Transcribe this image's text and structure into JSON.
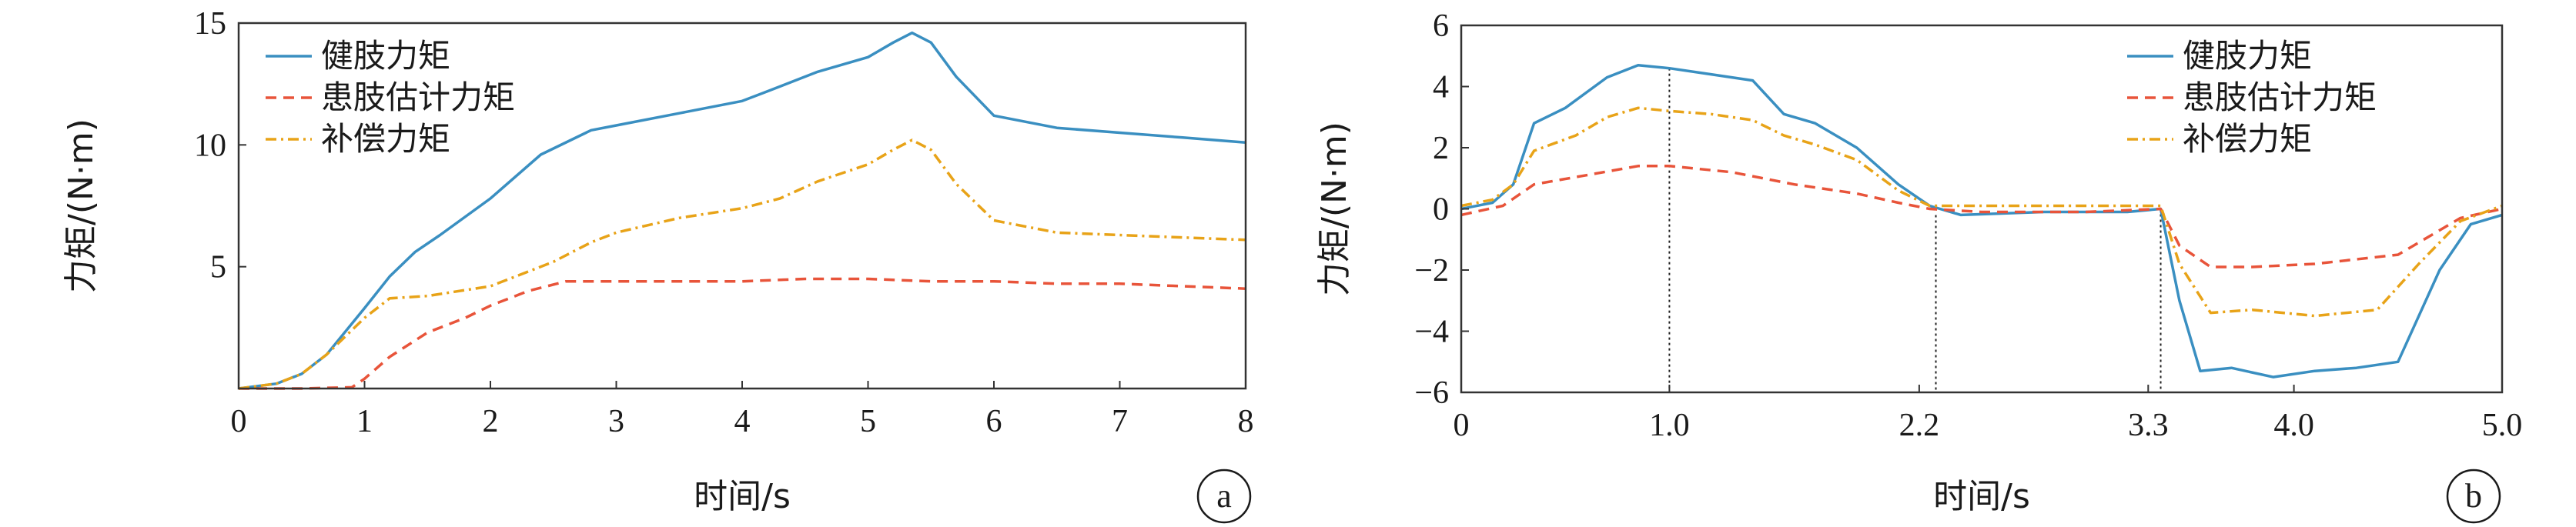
{
  "chart_data": [
    {
      "panel": "a",
      "type": "line",
      "xlabel": "时间/s",
      "ylabel": "力矩/(N·m)",
      "xlim": [
        0,
        8
      ],
      "ylim": [
        0,
        15
      ],
      "xticks": [
        0,
        1,
        2,
        3,
        4,
        5,
        6,
        7,
        8
      ],
      "xtick_labels": [
        "0",
        "1",
        "2",
        "3",
        "4",
        "5",
        "6",
        "7",
        "8"
      ],
      "yticks": [
        5,
        10,
        15
      ],
      "ytick_labels": [
        "5",
        "10",
        "15"
      ],
      "legend": "top-left",
      "series": [
        {
          "name": "健肢力矩",
          "color": "#3a8fc1",
          "dash": "solid",
          "x": [
            0,
            0.3,
            0.5,
            0.7,
            1.0,
            1.2,
            1.4,
            1.6,
            2.0,
            2.4,
            2.8,
            3.0,
            3.5,
            4.0,
            4.2,
            4.6,
            5.0,
            5.2,
            5.35,
            5.5,
            5.7,
            6.0,
            6.5,
            7.0,
            7.5,
            8.0
          ],
          "y": [
            0,
            0.2,
            0.6,
            1.4,
            3.3,
            4.6,
            5.6,
            6.3,
            7.8,
            9.6,
            10.6,
            10.8,
            11.3,
            11.8,
            12.2,
            13.0,
            13.6,
            14.2,
            14.6,
            14.2,
            12.8,
            11.2,
            10.7,
            10.5,
            10.3,
            10.1
          ]
        },
        {
          "name": "患肢估计力矩",
          "color": "#e8543a",
          "dash": "dashed",
          "x": [
            0,
            0.5,
            0.9,
            1.0,
            1.2,
            1.5,
            1.8,
            2.0,
            2.3,
            2.6,
            3.0,
            3.5,
            4.0,
            4.5,
            5.0,
            5.5,
            6.0,
            6.5,
            7.0,
            7.5,
            8.0
          ],
          "y": [
            0,
            0,
            0.05,
            0.4,
            1.3,
            2.3,
            2.9,
            3.4,
            4.0,
            4.4,
            4.4,
            4.4,
            4.4,
            4.5,
            4.5,
            4.4,
            4.4,
            4.3,
            4.3,
            4.2,
            4.1
          ]
        },
        {
          "name": "补偿力矩",
          "color": "#e8a318",
          "dash": "dashdot",
          "x": [
            0,
            0.3,
            0.5,
            0.7,
            1.0,
            1.2,
            1.5,
            2.0,
            2.5,
            2.8,
            3.0,
            3.5,
            4.0,
            4.3,
            4.6,
            5.0,
            5.2,
            5.35,
            5.5,
            5.7,
            6.0,
            6.5,
            7.0,
            7.5,
            8.0
          ],
          "y": [
            0,
            0.2,
            0.6,
            1.4,
            2.9,
            3.7,
            3.8,
            4.2,
            5.2,
            6.0,
            6.4,
            7.0,
            7.4,
            7.8,
            8.5,
            9.2,
            9.8,
            10.2,
            9.8,
            8.4,
            6.9,
            6.4,
            6.3,
            6.2,
            6.1
          ]
        }
      ]
    },
    {
      "panel": "b",
      "type": "line",
      "xlabel": "时间/s",
      "ylabel": "力矩/(N·m)",
      "xlim": [
        0,
        5
      ],
      "ylim": [
        -6,
        6
      ],
      "xticks": [
        0,
        1.0,
        2.2,
        3.3,
        4.0,
        5.0
      ],
      "xtick_labels": [
        "0",
        "1.0",
        "2.2",
        "3.3",
        "4.0",
        "5.0"
      ],
      "yticks": [
        -6,
        -4,
        -2,
        0,
        2,
        4,
        6
      ],
      "ytick_labels": [
        "−6",
        "−4",
        "−2",
        "0",
        "2",
        "4",
        "6"
      ],
      "vlines": [
        1.0,
        2.28,
        3.36
      ],
      "legend": "top-right",
      "series": [
        {
          "name": "健肢力矩",
          "color": "#3a8fc1",
          "dash": "solid",
          "x": [
            0,
            0.15,
            0.25,
            0.35,
            0.5,
            0.7,
            0.85,
            1.0,
            1.2,
            1.4,
            1.55,
            1.7,
            1.9,
            2.1,
            2.25,
            2.4,
            2.8,
            3.2,
            3.36,
            3.45,
            3.55,
            3.7,
            3.9,
            4.1,
            4.3,
            4.5,
            4.7,
            4.85,
            5.0
          ],
          "y": [
            0,
            0.2,
            0.8,
            2.8,
            3.3,
            4.3,
            4.7,
            4.6,
            4.4,
            4.2,
            3.1,
            2.8,
            2.0,
            0.8,
            0.1,
            -0.2,
            -0.1,
            -0.1,
            0,
            -3.0,
            -5.3,
            -5.2,
            -5.5,
            -5.3,
            -5.2,
            -5.0,
            -2.0,
            -0.5,
            -0.2
          ]
        },
        {
          "name": "患肢估计力矩",
          "color": "#e8543a",
          "dash": "dashed",
          "x": [
            0,
            0.2,
            0.35,
            0.6,
            0.85,
            1.0,
            1.3,
            1.6,
            1.9,
            2.1,
            2.25,
            2.5,
            3.0,
            3.36,
            3.45,
            3.6,
            3.8,
            4.1,
            4.5,
            4.8,
            5.0
          ],
          "y": [
            -0.2,
            0.1,
            0.8,
            1.1,
            1.4,
            1.4,
            1.2,
            0.8,
            0.5,
            0.2,
            0,
            -0.1,
            -0.1,
            0,
            -1.2,
            -1.9,
            -1.9,
            -1.8,
            -1.5,
            -0.3,
            0
          ]
        },
        {
          "name": "补偿力矩",
          "color": "#e8a318",
          "dash": "dashdot",
          "x": [
            0,
            0.15,
            0.25,
            0.35,
            0.55,
            0.7,
            0.85,
            1.0,
            1.2,
            1.4,
            1.55,
            1.7,
            1.9,
            2.1,
            2.25,
            2.5,
            3.0,
            3.36,
            3.45,
            3.6,
            3.8,
            4.1,
            4.4,
            4.6,
            4.8,
            5.0
          ],
          "y": [
            0.1,
            0.3,
            0.8,
            1.9,
            2.4,
            3.0,
            3.3,
            3.2,
            3.1,
            2.9,
            2.4,
            2.1,
            1.6,
            0.6,
            0.1,
            0.1,
            0.1,
            0.1,
            -1.8,
            -3.4,
            -3.3,
            -3.5,
            -3.3,
            -1.8,
            -0.4,
            0.1
          ]
        }
      ]
    }
  ]
}
